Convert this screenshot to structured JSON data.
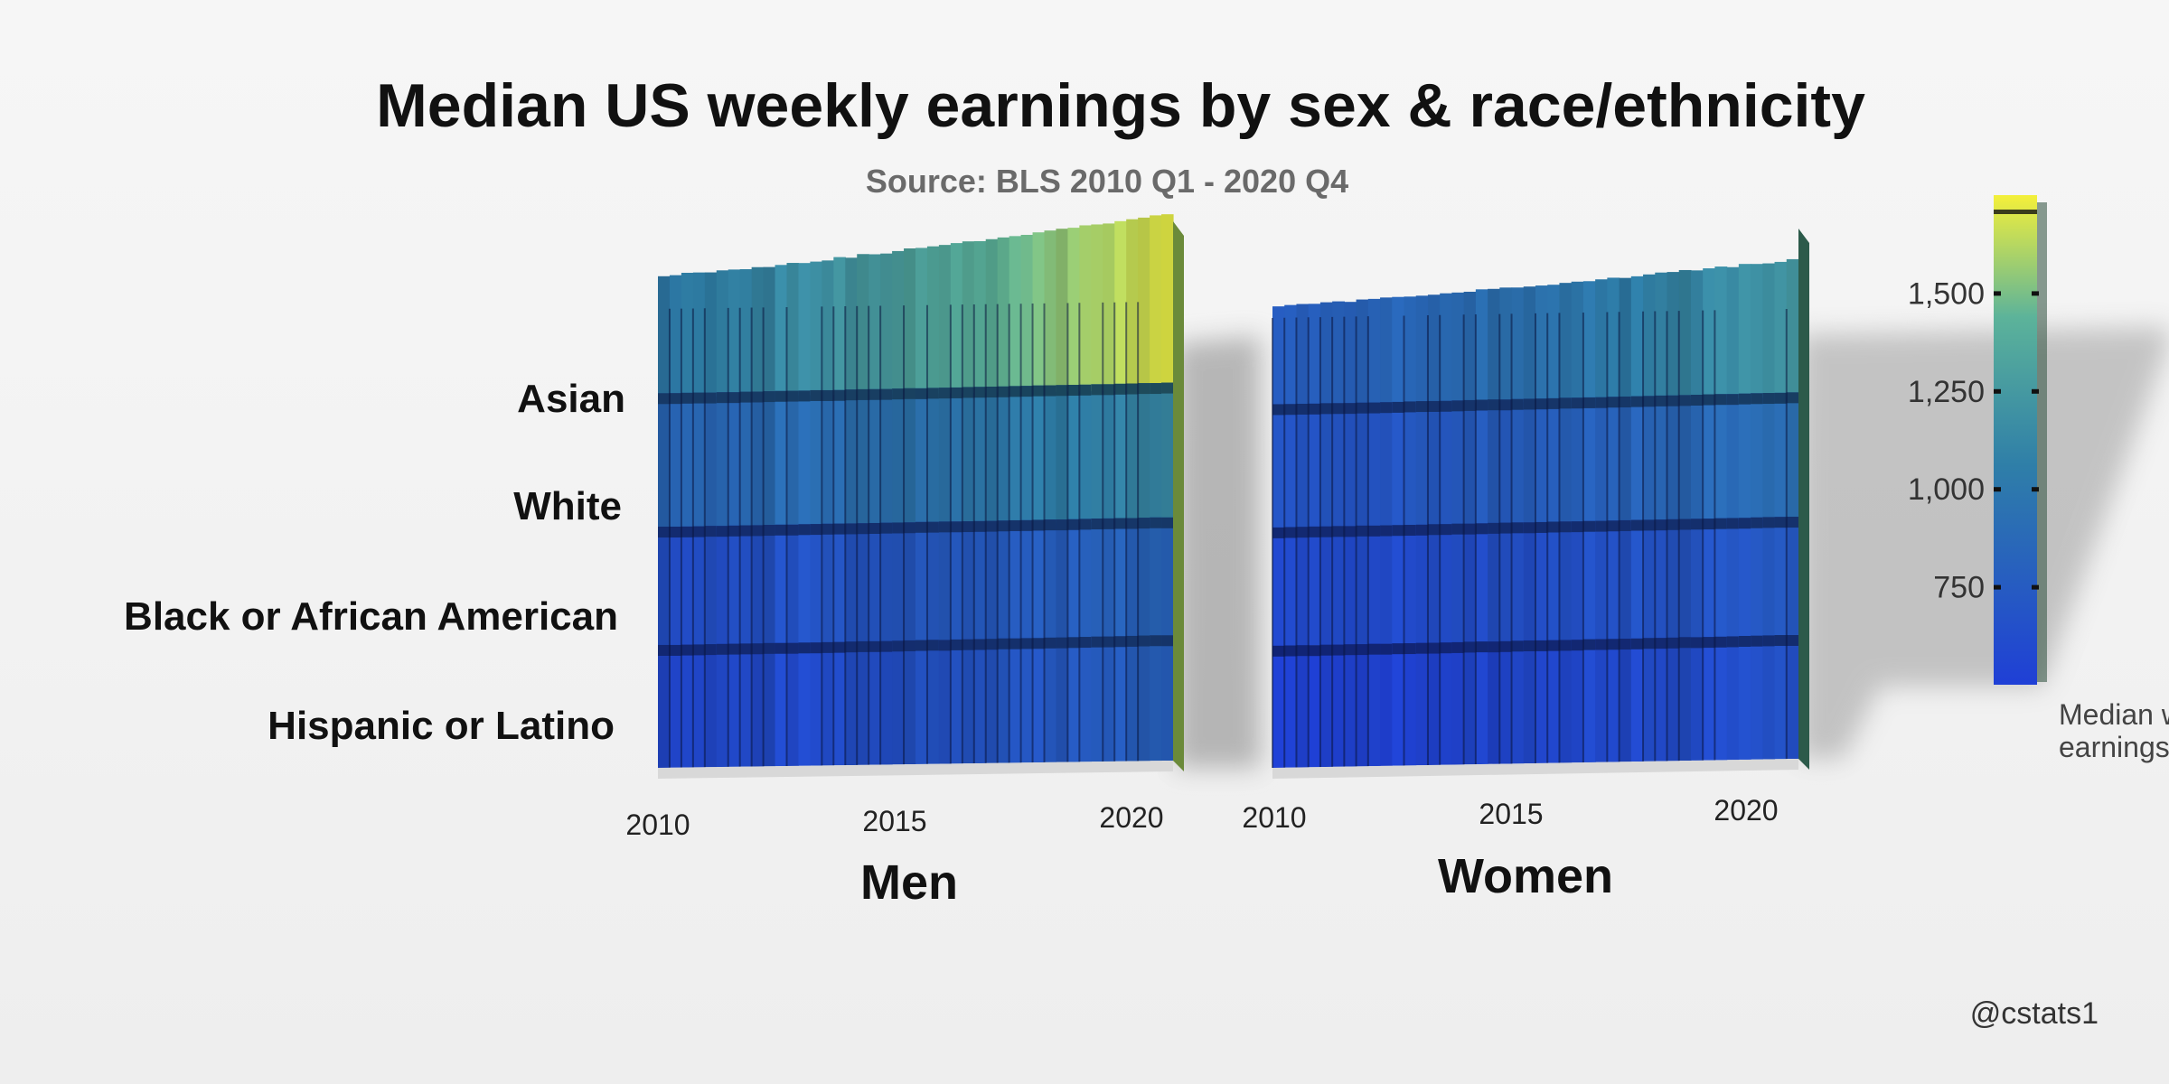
{
  "title": "Median US weekly earnings by sex & race/ethnicity",
  "subtitle": "Source: BLS 2010 Q1 - 2020 Q4",
  "credit": "@cstats1",
  "colors": {
    "low": "#1f3fd6",
    "mid": "#2f7fa8",
    "high": "#f4f03a",
    "text": "#111111",
    "subtext": "#6a6a6a"
  },
  "chart_data": {
    "type": "heatmap",
    "x_ticks": [
      "2010",
      "2015",
      "2020"
    ],
    "y_categories": [
      "Asian",
      "White",
      "Black or African American",
      "Hispanic or Latino"
    ],
    "quarters": {
      "start": "2010 Q1",
      "end": "2020 Q4",
      "count": 44
    },
    "panels": [
      {
        "label": "Men",
        "series": [
          {
            "name": "Asian",
            "start": 1040,
            "end": 1720
          },
          {
            "name": "White",
            "start": 850,
            "end": 1130
          },
          {
            "name": "Black or African American",
            "start": 640,
            "end": 830
          },
          {
            "name": "Hispanic or Latino",
            "start": 570,
            "end": 790
          }
        ]
      },
      {
        "label": "Women",
        "series": [
          {
            "name": "Asian",
            "start": 770,
            "end": 1230
          },
          {
            "name": "White",
            "start": 680,
            "end": 920
          },
          {
            "name": "Black or African American",
            "start": 590,
            "end": 730
          },
          {
            "name": "Hispanic or Latino",
            "start": 510,
            "end": 660
          }
        ]
      }
    ],
    "colorbar": {
      "title": "Median weekly earnings ($USD)",
      "ticks": [
        750,
        1000,
        1250,
        1500
      ],
      "tick_labels": [
        "750",
        "1,000",
        "1,250",
        "1,500"
      ],
      "range": [
        500,
        1750
      ]
    }
  }
}
